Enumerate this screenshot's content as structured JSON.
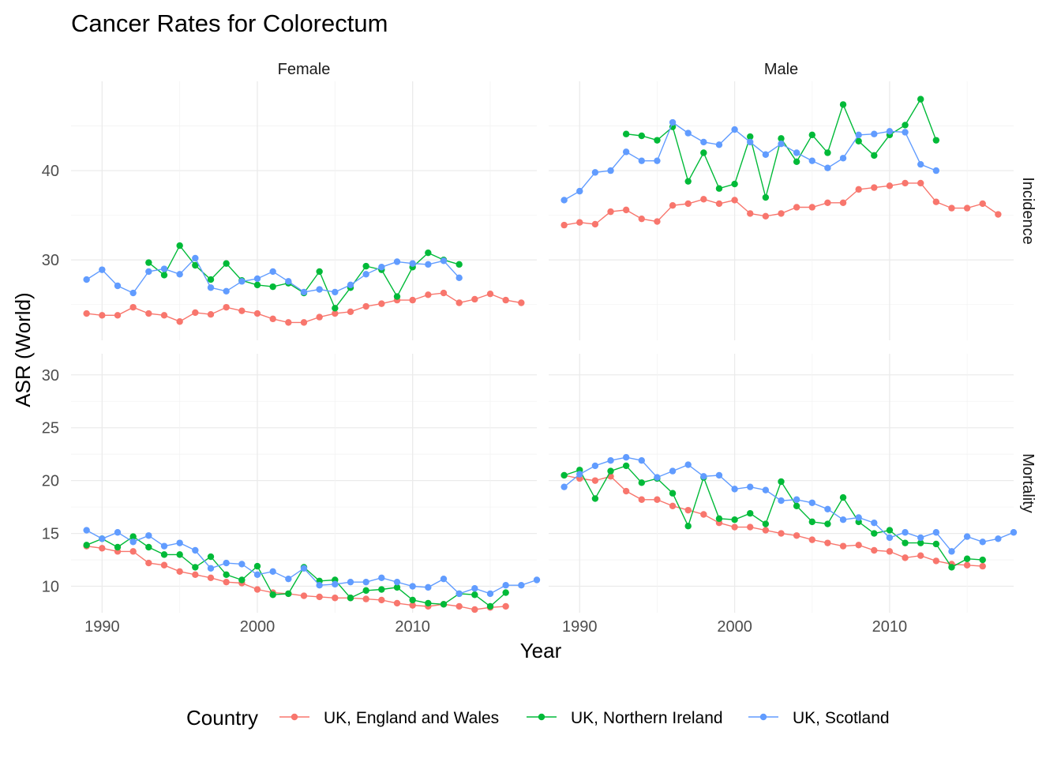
{
  "chart_data": {
    "type": "line",
    "title": "Cancer Rates for Colorectum",
    "xlabel": "Year",
    "ylabel": "ASR (World)",
    "legend": {
      "title": "Country",
      "position": "bottom",
      "entries": [
        "UK, England and Wales",
        "UK, Northern Ireland",
        "UK, Scotland"
      ]
    },
    "colors": {
      "UK, England and Wales": "#F8766D",
      "UK, Northern Ireland": "#00BA38",
      "UK, Scotland": "#619CFF"
    },
    "facet_cols": [
      "Female",
      "Male"
    ],
    "facet_rows": [
      "Incidence",
      "Mortality"
    ],
    "x_ticks": [
      1990,
      2000,
      2010
    ],
    "xlim": [
      1988,
      2018
    ],
    "rows": {
      "Incidence": {
        "ylim": [
          21,
          50
        ],
        "y_ticks": [
          30,
          40
        ]
      },
      "Mortality": {
        "ylim": [
          7.5,
          32
        ],
        "y_ticks": [
          10,
          15,
          20,
          25,
          30
        ]
      }
    },
    "panels": [
      {
        "col": "Female",
        "row": "Incidence",
        "series": [
          {
            "name": "UK, England and Wales",
            "x": [
              1989,
              1990,
              1991,
              1992,
              1993,
              1994,
              1995,
              1996,
              1997,
              1998,
              1999,
              2000,
              2001,
              2002,
              2003,
              2004,
              2005,
              2006,
              2007,
              2008,
              2009,
              2010,
              2011,
              2012,
              2013,
              2014,
              2015,
              2016,
              2017
            ],
            "y": [
              24.0,
              23.8,
              23.8,
              24.7,
              24.0,
              23.8,
              23.1,
              24.1,
              23.9,
              24.7,
              24.3,
              24.0,
              23.4,
              23.0,
              23.0,
              23.6,
              24.0,
              24.2,
              24.8,
              25.1,
              25.5,
              25.5,
              26.1,
              26.3,
              25.2,
              25.6,
              26.2,
              25.5,
              25.2
            ]
          },
          {
            "name": "UK, Northern Ireland",
            "x": [
              1993,
              1994,
              1995,
              1996,
              1997,
              1998,
              1999,
              2000,
              2001,
              2002,
              2003,
              2004,
              2005,
              2006,
              2007,
              2008,
              2009,
              2010,
              2011,
              2012,
              2013
            ],
            "y": [
              29.7,
              28.3,
              31.6,
              29.4,
              27.8,
              29.6,
              27.7,
              27.2,
              27.0,
              27.4,
              26.3,
              28.7,
              24.6,
              26.9,
              29.3,
              28.9,
              25.9,
              29.2,
              30.8,
              30.0,
              29.5
            ]
          },
          {
            "name": "UK, Scotland",
            "x": [
              1989,
              1990,
              1991,
              1992,
              1993,
              1994,
              1995,
              1996,
              1997,
              1998,
              1999,
              2000,
              2001,
              2002,
              2003,
              2004,
              2005,
              2006,
              2007,
              2008,
              2009,
              2010,
              2011,
              2012,
              2013
            ],
            "y": [
              27.8,
              28.9,
              27.1,
              26.3,
              28.7,
              29.0,
              28.4,
              30.2,
              26.9,
              26.5,
              27.6,
              27.9,
              28.7,
              27.6,
              26.4,
              26.7,
              26.4,
              27.2,
              28.4,
              29.2,
              29.8,
              29.6,
              29.5,
              29.9,
              28.0
            ]
          }
        ]
      },
      {
        "col": "Male",
        "row": "Incidence",
        "series": [
          {
            "name": "UK, England and Wales",
            "x": [
              1989,
              1990,
              1991,
              1992,
              1993,
              1994,
              1995,
              1996,
              1997,
              1998,
              1999,
              2000,
              2001,
              2002,
              2003,
              2004,
              2005,
              2006,
              2007,
              2008,
              2009,
              2010,
              2011,
              2012,
              2013,
              2014,
              2015,
              2016,
              2017
            ],
            "y": [
              33.9,
              34.2,
              34.0,
              35.4,
              35.6,
              34.6,
              34.3,
              36.1,
              36.3,
              36.8,
              36.3,
              36.7,
              35.2,
              34.9,
              35.2,
              35.9,
              35.9,
              36.4,
              36.4,
              37.9,
              38.1,
              38.3,
              38.6,
              38.6,
              36.5,
              35.8,
              35.8,
              36.3,
              35.1
            ]
          },
          {
            "name": "UK, Northern Ireland",
            "x": [
              1993,
              1994,
              1995,
              1996,
              1997,
              1998,
              1999,
              2000,
              2001,
              2002,
              2003,
              2004,
              2005,
              2006,
              2007,
              2008,
              2009,
              2010,
              2011,
              2012,
              2013
            ],
            "y": [
              44.1,
              43.9,
              43.4,
              44.9,
              38.8,
              42.0,
              38.0,
              38.5,
              43.8,
              37.0,
              43.6,
              41.0,
              44.0,
              42.0,
              47.4,
              43.3,
              41.7,
              44.0,
              45.1,
              48.0,
              43.4
            ]
          },
          {
            "name": "UK, Scotland",
            "x": [
              1989,
              1990,
              1991,
              1992,
              1993,
              1994,
              1995,
              1996,
              1997,
              1998,
              1999,
              2000,
              2001,
              2002,
              2003,
              2004,
              2005,
              2006,
              2007,
              2008,
              2009,
              2010,
              2011,
              2012,
              2013
            ],
            "y": [
              36.7,
              37.7,
              39.8,
              40.0,
              42.1,
              41.1,
              41.1,
              45.4,
              44.2,
              43.2,
              42.9,
              44.6,
              43.2,
              41.8,
              43.0,
              42.0,
              41.1,
              40.3,
              41.4,
              44.0,
              44.1,
              44.4,
              44.3,
              40.7,
              40.0
            ]
          }
        ]
      },
      {
        "col": "Female",
        "row": "Mortality",
        "series": [
          {
            "name": "UK, England and Wales",
            "x": [
              1989,
              1990,
              1991,
              1992,
              1993,
              1994,
              1995,
              1996,
              1997,
              1998,
              1999,
              2000,
              2001,
              2002,
              2003,
              2004,
              2005,
              2006,
              2007,
              2008,
              2009,
              2010,
              2011,
              2012,
              2013,
              2014,
              2015,
              2016
            ],
            "y": [
              13.8,
              13.6,
              13.3,
              13.3,
              12.2,
              12.0,
              11.4,
              11.1,
              10.8,
              10.4,
              10.3,
              9.7,
              9.4,
              9.3,
              9.1,
              9.0,
              8.9,
              8.9,
              8.8,
              8.7,
              8.4,
              8.2,
              8.1,
              8.3,
              8.1,
              7.8,
              8.0,
              8.1
            ]
          },
          {
            "name": "UK, Northern Ireland",
            "x": [
              1989,
              1990,
              1991,
              1992,
              1993,
              1994,
              1995,
              1996,
              1997,
              1998,
              1999,
              2000,
              2001,
              2002,
              2003,
              2004,
              2005,
              2006,
              2007,
              2008,
              2009,
              2010,
              2011,
              2012,
              2013,
              2014,
              2015,
              2016
            ],
            "y": [
              13.9,
              14.5,
              13.7,
              14.7,
              13.7,
              13.0,
              13.0,
              11.8,
              12.8,
              11.1,
              10.6,
              11.9,
              9.2,
              9.3,
              11.8,
              10.5,
              10.6,
              8.9,
              9.6,
              9.7,
              9.9,
              8.7,
              8.4,
              8.3,
              9.3,
              9.2,
              8.1,
              9.4
            ]
          },
          {
            "name": "UK, Scotland",
            "x": [
              1989,
              1990,
              1991,
              1992,
              1993,
              1994,
              1995,
              1996,
              1997,
              1998,
              1999,
              2000,
              2001,
              2002,
              2003,
              2004,
              2005,
              2006,
              2007,
              2008,
              2009,
              2010,
              2011,
              2012,
              2013,
              2014,
              2015,
              2016,
              2017,
              2018
            ],
            "y": [
              15.3,
              14.5,
              15.1,
              14.2,
              14.8,
              13.8,
              14.1,
              13.4,
              11.7,
              12.2,
              12.1,
              11.1,
              11.4,
              10.7,
              11.7,
              10.1,
              10.2,
              10.4,
              10.4,
              10.8,
              10.4,
              10.0,
              9.9,
              10.7,
              9.3,
              9.8,
              9.3,
              10.1,
              10.1,
              10.6
            ]
          }
        ]
      },
      {
        "col": "Male",
        "row": "Mortality",
        "series": [
          {
            "name": "UK, England and Wales",
            "x": [
              1989,
              1990,
              1991,
              1992,
              1993,
              1994,
              1995,
              1996,
              1997,
              1998,
              1999,
              2000,
              2001,
              2002,
              2003,
              2004,
              2005,
              2006,
              2007,
              2008,
              2009,
              2010,
              2011,
              2012,
              2013,
              2014,
              2015,
              2016
            ],
            "y": [
              20.5,
              20.2,
              20.0,
              20.4,
              19.0,
              18.2,
              18.2,
              17.6,
              17.2,
              16.8,
              16.0,
              15.6,
              15.6,
              15.3,
              15.0,
              14.8,
              14.4,
              14.1,
              13.8,
              13.9,
              13.4,
              13.3,
              12.7,
              12.9,
              12.4,
              12.1,
              12.0,
              11.9
            ]
          },
          {
            "name": "UK, Northern Ireland",
            "x": [
              1989,
              1990,
              1991,
              1992,
              1993,
              1994,
              1995,
              1996,
              1997,
              1998,
              1999,
              2000,
              2001,
              2002,
              2003,
              2004,
              2005,
              2006,
              2007,
              2008,
              2009,
              2010,
              2011,
              2012,
              2013,
              2014,
              2015,
              2016
            ],
            "y": [
              20.5,
              21.0,
              18.3,
              20.9,
              21.4,
              19.8,
              20.2,
              18.8,
              15.7,
              20.3,
              16.4,
              16.3,
              16.9,
              15.9,
              19.9,
              17.6,
              16.1,
              15.9,
              18.4,
              16.1,
              15.0,
              15.3,
              14.1,
              14.1,
              14.0,
              11.8,
              12.6,
              12.5
            ]
          },
          {
            "name": "UK, Scotland",
            "x": [
              1989,
              1990,
              1991,
              1992,
              1993,
              1994,
              1995,
              1996,
              1997,
              1998,
              1999,
              2000,
              2001,
              2002,
              2003,
              2004,
              2005,
              2006,
              2007,
              2008,
              2009,
              2010,
              2011,
              2012,
              2013,
              2014,
              2015,
              2016,
              2017,
              2018
            ],
            "y": [
              19.4,
              20.6,
              21.4,
              21.9,
              22.2,
              21.9,
              20.3,
              20.9,
              21.5,
              20.4,
              20.5,
              19.2,
              19.4,
              19.1,
              18.1,
              18.2,
              17.9,
              17.3,
              16.3,
              16.5,
              16.0,
              14.6,
              15.1,
              14.6,
              15.1,
              13.3,
              14.7,
              14.2,
              14.5,
              15.1
            ]
          }
        ]
      }
    ]
  }
}
